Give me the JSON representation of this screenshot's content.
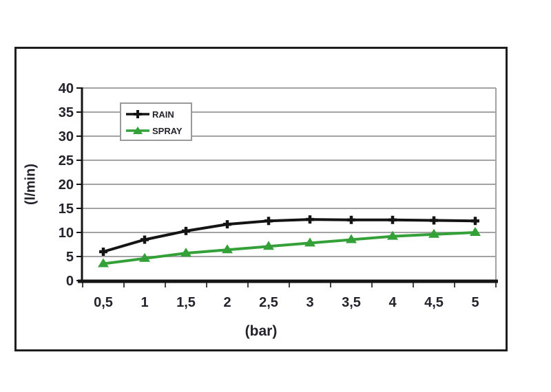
{
  "chart_data": {
    "type": "line",
    "categories": [
      "0,5",
      "1",
      "1,5",
      "2",
      "2,5",
      "3",
      "3,5",
      "4",
      "4,5",
      "5"
    ],
    "series": [
      {
        "name": "RAIN",
        "color": "#141414",
        "marker": "plus",
        "values": [
          6,
          8.5,
          10.3,
          11.7,
          12.4,
          12.7,
          12.6,
          12.6,
          12.5,
          12.4
        ]
      },
      {
        "name": "SPRAY",
        "color": "#34a038",
        "marker": "triangle",
        "values": [
          3.5,
          4.6,
          5.7,
          6.4,
          7.1,
          7.8,
          8.5,
          9.2,
          9.6,
          10.0
        ]
      }
    ],
    "title": "",
    "xlabel": "(bar)",
    "ylabel": "(l/min)",
    "ylim": [
      0,
      40
    ],
    "ytick_step": 5,
    "ytick_labels": [
      "0",
      "5",
      "10",
      "15",
      "20",
      "25",
      "30",
      "35",
      "40"
    ],
    "grid": true,
    "legend_position": "top-left",
    "colors": {
      "gridline": "#a3a3a3",
      "axis": "#141414",
      "tick": "#444444",
      "text": "#23232b",
      "plot_right_border": "#a3a3a3"
    }
  }
}
